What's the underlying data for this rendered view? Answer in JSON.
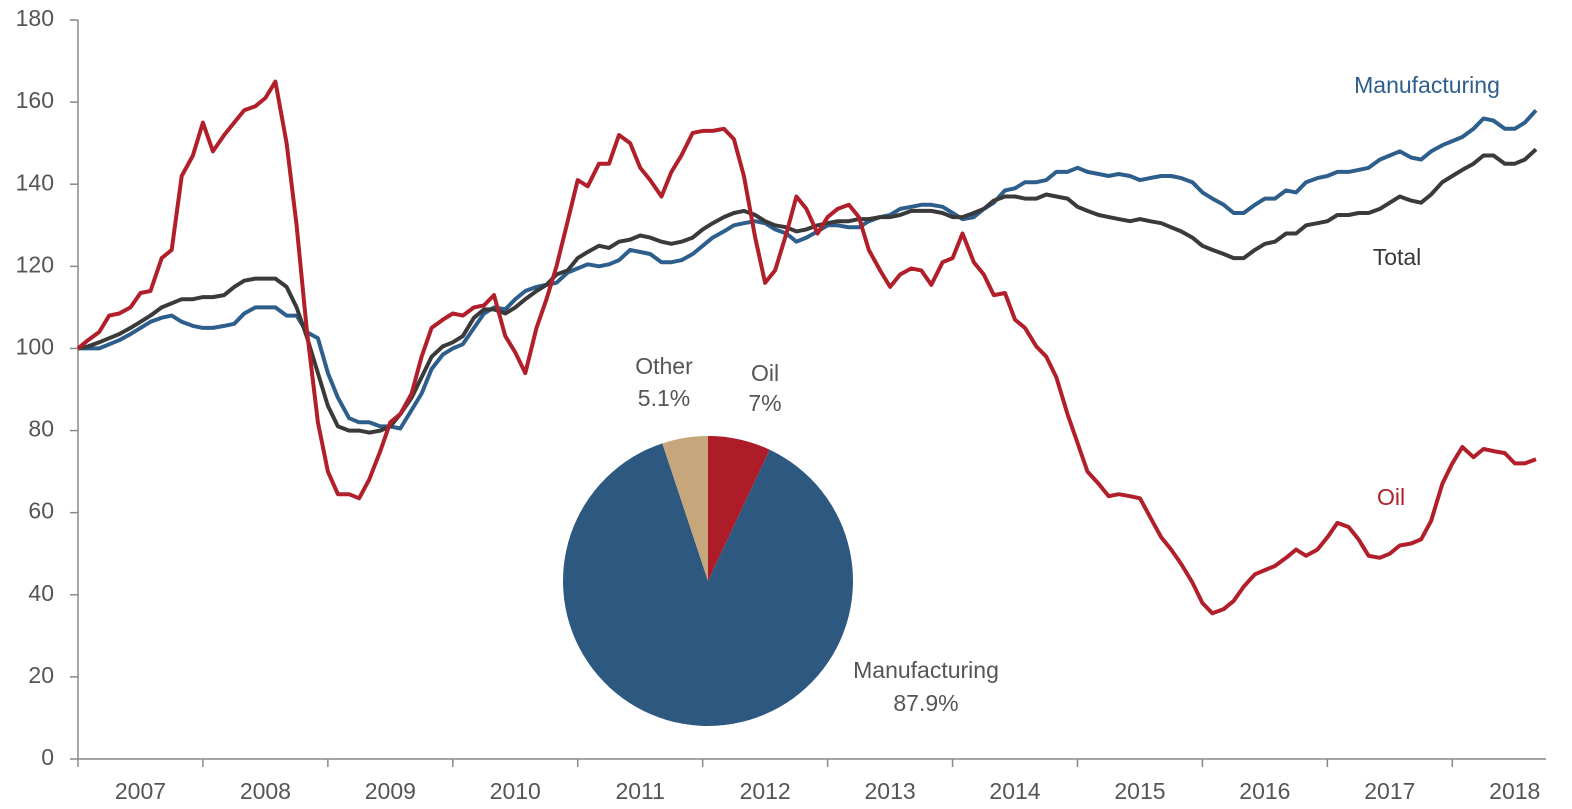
{
  "chart_data": [
    {
      "type": "line",
      "x": [
        2007,
        2007.08,
        2007.17,
        2007.25,
        2007.33,
        2007.42,
        2007.5,
        2007.58,
        2007.67,
        2007.75,
        2007.83,
        2007.92,
        2008,
        2008.08,
        2008.17,
        2008.25,
        2008.33,
        2008.42,
        2008.5,
        2008.58,
        2008.67,
        2008.75,
        2008.83,
        2008.92,
        2009,
        2009.08,
        2009.17,
        2009.25,
        2009.33,
        2009.42,
        2009.5,
        2009.58,
        2009.67,
        2009.75,
        2009.83,
        2009.92,
        2010,
        2010.08,
        2010.17,
        2010.25,
        2010.33,
        2010.42,
        2010.5,
        2010.58,
        2010.67,
        2010.75,
        2010.83,
        2010.92,
        2011,
        2011.08,
        2011.17,
        2011.25,
        2011.33,
        2011.42,
        2011.5,
        2011.58,
        2011.67,
        2011.75,
        2011.83,
        2011.92,
        2012,
        2012.08,
        2012.17,
        2012.25,
        2012.33,
        2012.42,
        2012.5,
        2012.58,
        2012.67,
        2012.75,
        2012.83,
        2012.92,
        2013,
        2013.08,
        2013.17,
        2013.25,
        2013.33,
        2013.42,
        2013.5,
        2013.58,
        2013.67,
        2013.75,
        2013.83,
        2013.92,
        2014,
        2014.08,
        2014.17,
        2014.25,
        2014.33,
        2014.42,
        2014.5,
        2014.58,
        2014.67,
        2014.75,
        2014.83,
        2014.92,
        2015,
        2015.08,
        2015.17,
        2015.25,
        2015.33,
        2015.42,
        2015.5,
        2015.58,
        2015.67,
        2015.75,
        2015.83,
        2015.92,
        2016,
        2016.08,
        2016.17,
        2016.25,
        2016.33,
        2016.42,
        2016.5,
        2016.58,
        2016.67,
        2016.75,
        2016.83,
        2016.92,
        2017,
        2017.08,
        2017.17,
        2017.25,
        2017.33,
        2017.42,
        2017.5,
        2017.58,
        2017.67,
        2017.75,
        2017.83,
        2017.92,
        2018,
        2018.08,
        2018.17,
        2018.25,
        2018.33,
        2018.42,
        2018.5,
        2018.58,
        2018.67
      ],
      "series": [
        {
          "name": "Manufacturing",
          "color": "#2e5e8c",
          "values": [
            100,
            100,
            100,
            101,
            102,
            103.5,
            105,
            106.5,
            107.5,
            108,
            106.5,
            105.5,
            105,
            105,
            105.5,
            106,
            108.5,
            110,
            110,
            110,
            108,
            108,
            104,
            102.5,
            94,
            88,
            83,
            82,
            82,
            81,
            81,
            80.5,
            85,
            89,
            95,
            98.5,
            100,
            101,
            105,
            108.5,
            110,
            109.5,
            112,
            114,
            115,
            115.5,
            116,
            118.5,
            119.5,
            120.5,
            120,
            120.5,
            121.5,
            124,
            123.5,
            123,
            121,
            121,
            121.5,
            123,
            125,
            127,
            128.5,
            130,
            130.5,
            131,
            130.5,
            129,
            128,
            126,
            127,
            128.5,
            130,
            130,
            129.5,
            129.5,
            131,
            132,
            132.5,
            134,
            134.5,
            135,
            135,
            134.5,
            133,
            131.5,
            132,
            134,
            135.5,
            138.5,
            139,
            140.5,
            140.5,
            141,
            143,
            143,
            144,
            143,
            142.5,
            142,
            142.5,
            142,
            141,
            141.5,
            142,
            142,
            141.5,
            140.5,
            138,
            136.5,
            135,
            133,
            133,
            135,
            136.5,
            136.5,
            138.5,
            138,
            140.5,
            141.5,
            142,
            143,
            143,
            143.5,
            144,
            146,
            147,
            148,
            146.5,
            146,
            148,
            149.5,
            150.5,
            151.5,
            153.5,
            156,
            155.5,
            153.5,
            153.5,
            155,
            158
          ]
        },
        {
          "name": "Total",
          "color": "#3a3a3a",
          "values": [
            100,
            100.5,
            101.5,
            102.5,
            103.5,
            105,
            106.5,
            108,
            110,
            111,
            112,
            112,
            112.5,
            112.5,
            113,
            115,
            116.5,
            117,
            117,
            117,
            115,
            110,
            103,
            94,
            86,
            81,
            80,
            80,
            79.5,
            80,
            81,
            84,
            88,
            93,
            98,
            100.5,
            101.5,
            103,
            107.5,
            109.5,
            109.5,
            108.5,
            110,
            112,
            114,
            115.5,
            118,
            119,
            122,
            123.5,
            125,
            124.5,
            126,
            126.5,
            127.5,
            127,
            126,
            125.5,
            126,
            127,
            129,
            130.5,
            132,
            133,
            133.5,
            132.5,
            131,
            130,
            129.5,
            128.5,
            129,
            130,
            130.5,
            131,
            131,
            131.5,
            131.5,
            132,
            132,
            132.5,
            133.5,
            133.5,
            133.5,
            133,
            132,
            132,
            133,
            134,
            136,
            137,
            137,
            136.5,
            136.5,
            137.5,
            137,
            136.5,
            134.5,
            133.5,
            132.5,
            132,
            131.5,
            131,
            131.5,
            131,
            130.5,
            129.5,
            128.5,
            127,
            125,
            124,
            123,
            122,
            122,
            124,
            125.5,
            126,
            128,
            128,
            130,
            130.5,
            131,
            132.5,
            132.5,
            133,
            133,
            134,
            135.5,
            137,
            136,
            135.5,
            137.5,
            140.5,
            142,
            143.5,
            145,
            147,
            147,
            145,
            145,
            146,
            148.5
          ]
        },
        {
          "name": "Oil",
          "color": "#b01f2a",
          "values": [
            100,
            102,
            104,
            108,
            108.5,
            110,
            113.5,
            114,
            122,
            124,
            142,
            147,
            155,
            148,
            152,
            155,
            158,
            159,
            161,
            165,
            150,
            130,
            105,
            82,
            70,
            64.5,
            64.5,
            63.5,
            68,
            75,
            82,
            84,
            89,
            98,
            105,
            107,
            108.5,
            108,
            110,
            110.5,
            113,
            103,
            99,
            94,
            105,
            112,
            120,
            131,
            141,
            139.5,
            145,
            145,
            152,
            150,
            144,
            141,
            137,
            143,
            147,
            152.5,
            153,
            153,
            153.5,
            151,
            142,
            127,
            116,
            119,
            128,
            137,
            134,
            128,
            132,
            134,
            135,
            132,
            124,
            119,
            115,
            118,
            119.5,
            119,
            115.5,
            121,
            122,
            128,
            121,
            118,
            113,
            113.5,
            107,
            105,
            100.5,
            98,
            93,
            84,
            77,
            70,
            67,
            64,
            64.5,
            64,
            63.5,
            59,
            54,
            51,
            47.5,
            43,
            38,
            35.5,
            36.5,
            38.5,
            42,
            45,
            46,
            47,
            49,
            51,
            49.5,
            51,
            54,
            57.5,
            56.5,
            53.5,
            49.5,
            49,
            50,
            52,
            52.5,
            53.5,
            58,
            67,
            72,
            76,
            73.5,
            75.5,
            75,
            74.5,
            72,
            72,
            73
          ]
        }
      ],
      "xlim": [
        2007,
        2018.75
      ],
      "xticks": [
        {
          "value": 2007.5,
          "label": "2007"
        },
        {
          "value": 2008.5,
          "label": "2008"
        },
        {
          "value": 2009.5,
          "label": "2009"
        },
        {
          "value": 2010.5,
          "label": "2010"
        },
        {
          "value": 2011.5,
          "label": "2011"
        },
        {
          "value": 2012.5,
          "label": "2012"
        },
        {
          "value": 2013.5,
          "label": "2013"
        },
        {
          "value": 2014.5,
          "label": "2014"
        },
        {
          "value": 2015.5,
          "label": "2015"
        },
        {
          "value": 2016.5,
          "label": "2016"
        },
        {
          "value": 2017.5,
          "label": "2017"
        },
        {
          "value": 2018.5,
          "label": "2018"
        }
      ],
      "xminor_ticks": [
        2007,
        2008,
        2009,
        2010,
        2011,
        2012,
        2013,
        2014,
        2015,
        2016,
        2017,
        2018
      ],
      "ylim": [
        0,
        180
      ],
      "yticks": [
        0,
        20,
        40,
        60,
        80,
        100,
        120,
        140,
        160,
        180
      ],
      "grid": false
    },
    {
      "type": "pie",
      "categories": [
        "Oil",
        "Manufacturing",
        "Other"
      ],
      "values": [
        7,
        87.9,
        5.1
      ],
      "value_labels": [
        "7%",
        "87.9%",
        "5.1%"
      ],
      "colors": [
        "#ad1c28",
        "#2d5880",
        "#c6a67b"
      ]
    }
  ]
}
